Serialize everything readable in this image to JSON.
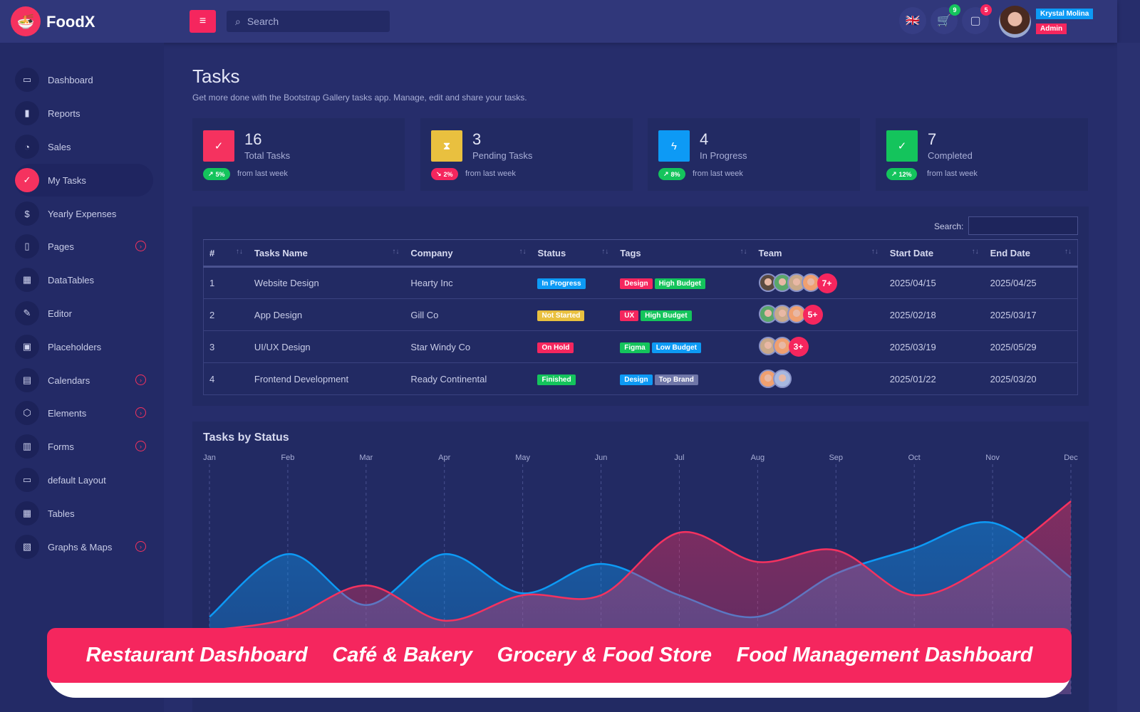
{
  "header": {
    "brand": "FoodX",
    "search_placeholder": "Search",
    "cart_count": "9",
    "messages_count": "5",
    "user_name": "Krystal Molina",
    "user_role": "Admin"
  },
  "sidebar": {
    "items": [
      {
        "label": "Dashboard",
        "icon": "monitor-icon",
        "glyph": "▭"
      },
      {
        "label": "Reports",
        "icon": "bar-chart-icon",
        "glyph": "▮"
      },
      {
        "label": "Sales",
        "icon": "pie-chart-icon",
        "glyph": "◔"
      },
      {
        "label": "My Tasks",
        "icon": "task-check-icon",
        "glyph": "✓",
        "active": true
      },
      {
        "label": "Yearly Expenses",
        "icon": "dollar-icon",
        "glyph": "$"
      },
      {
        "label": "Pages",
        "icon": "book-icon",
        "glyph": "▯",
        "sub": true
      },
      {
        "label": "DataTables",
        "icon": "grid-icon",
        "glyph": "▦"
      },
      {
        "label": "Editor",
        "icon": "edit-icon",
        "glyph": "✎"
      },
      {
        "label": "Placeholders",
        "icon": "image-icon",
        "glyph": "▣"
      },
      {
        "label": "Calendars",
        "icon": "calendar-icon",
        "glyph": "▤",
        "sub": true
      },
      {
        "label": "Elements",
        "icon": "box-icon",
        "glyph": "⬡",
        "sub": true
      },
      {
        "label": "Forms",
        "icon": "layout-icon",
        "glyph": "▥",
        "sub": true
      },
      {
        "label": "default Layout",
        "icon": "monitor-icon",
        "glyph": "▭"
      },
      {
        "label": "Tables",
        "icon": "table-icon",
        "glyph": "▦"
      },
      {
        "label": "Graphs & Maps",
        "icon": "map-icon",
        "glyph": "▧",
        "sub": true
      }
    ]
  },
  "page": {
    "title": "Tasks",
    "subtitle": "Get more done with the Bootstrap Gallery tasks app. Manage, edit and share your tasks."
  },
  "stats": [
    {
      "value": "16",
      "label": "Total Tasks",
      "change": "5%",
      "trend": "up",
      "from": "from last week",
      "color": "#f5325f"
    },
    {
      "value": "3",
      "label": "Pending Tasks",
      "change": "2%",
      "trend": "down",
      "from": "from last week",
      "color": "#e9c03f"
    },
    {
      "value": "4",
      "label": "In Progress",
      "change": "8%",
      "trend": "up",
      "from": "from last week",
      "color": "#0d9af5"
    },
    {
      "value": "7",
      "label": "Completed",
      "change": "12%",
      "trend": "up",
      "from": "from last week",
      "color": "#14c45c"
    }
  ],
  "table": {
    "search_label": "Search:",
    "columns": [
      "#",
      "Tasks Name",
      "Company",
      "Status",
      "Tags",
      "Team",
      "Start Date",
      "End Date"
    ],
    "rows": [
      {
        "id": "1",
        "name": "Website Design",
        "company": "Hearty Inc",
        "status": "In Progress",
        "status_color": "#0d9af5",
        "tags": [
          {
            "t": "Design",
            "c": "#f5265e"
          },
          {
            "t": "High Budget",
            "c": "#14c45c"
          }
        ],
        "team": 4,
        "more": "7+",
        "start": "2025/04/15",
        "end": "2025/04/25"
      },
      {
        "id": "2",
        "name": "App Design",
        "company": "Gill Co",
        "status": "Not Started",
        "status_color": "#e9c03f",
        "tags": [
          {
            "t": "UX",
            "c": "#f5265e"
          },
          {
            "t": "High Budget",
            "c": "#14c45c"
          }
        ],
        "team": 3,
        "more": "5+",
        "start": "2025/02/18",
        "end": "2025/03/17"
      },
      {
        "id": "3",
        "name": "UI/UX Design",
        "company": "Star Windy Co",
        "status": "On Hold",
        "status_color": "#f5265e",
        "tags": [
          {
            "t": "Figma",
            "c": "#14c45c"
          },
          {
            "t": "Low Budget",
            "c": "#0d9af5"
          }
        ],
        "team": 2,
        "more": "3+",
        "start": "2025/03/19",
        "end": "2025/05/29"
      },
      {
        "id": "4",
        "name": "Frontend Development",
        "company": "Ready Continental",
        "status": "Finished",
        "status_color": "#14c45c",
        "tags": [
          {
            "t": "Design",
            "c": "#0d9af5"
          },
          {
            "t": "Top Brand",
            "c": "#6f76a8"
          }
        ],
        "team": 2,
        "more": "",
        "start": "2025/01/22",
        "end": "2025/03/20"
      }
    ]
  },
  "chart_data": {
    "type": "area",
    "title": "Tasks by Status",
    "categories": [
      "Jan",
      "Feb",
      "Mar",
      "Apr",
      "May",
      "Jun",
      "Jul",
      "Aug",
      "Sep",
      "Oct",
      "Nov",
      "Dec"
    ],
    "ylim": [
      0,
      100
    ],
    "grid": "vertical dashed",
    "series": [
      {
        "values": [
          25,
          57,
          31,
          57,
          37,
          52,
          36,
          25,
          47,
          60,
          73,
          45
        ],
        "color": "#0d9af5"
      },
      {
        "values": [
          18,
          24,
          41,
          23,
          36,
          36,
          68,
          53,
          59,
          36,
          53,
          84
        ],
        "color": "#f5325f"
      }
    ]
  },
  "banner": [
    "Restaurant Dashboard",
    "Café & Bakery",
    "Grocery & Food Store",
    "Food Management Dashboard"
  ]
}
